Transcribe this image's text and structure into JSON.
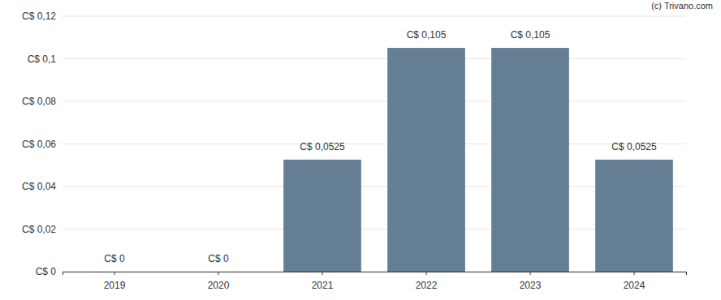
{
  "chart_data": {
    "type": "bar",
    "annotations": [
      "(c) Trivano.com"
    ],
    "categories": [
      "2019",
      "2020",
      "2021",
      "2022",
      "2023",
      "2024"
    ],
    "values": [
      0,
      0,
      0.0525,
      0.105,
      0.105,
      0.0525
    ],
    "value_labels": [
      "C$ 0",
      "C$ 0",
      "C$ 0,0525",
      "C$ 0,105",
      "C$ 0,105",
      "C$ 0,0525"
    ],
    "data_labels": true,
    "color": "#647f94",
    "ylim": [
      0,
      0.12
    ],
    "yticks": [
      {
        "value": 0,
        "label": "C$ 0"
      },
      {
        "value": 0.02,
        "label": "C$ 0,02"
      },
      {
        "value": 0.04,
        "label": "C$ 0,04"
      },
      {
        "value": 0.06,
        "label": "C$ 0,06"
      },
      {
        "value": 0.08,
        "label": "C$ 0,08"
      },
      {
        "value": 0.1,
        "label": "C$ 0,1"
      },
      {
        "value": 0.12,
        "label": "C$ 0,12"
      }
    ],
    "grid": true
  }
}
